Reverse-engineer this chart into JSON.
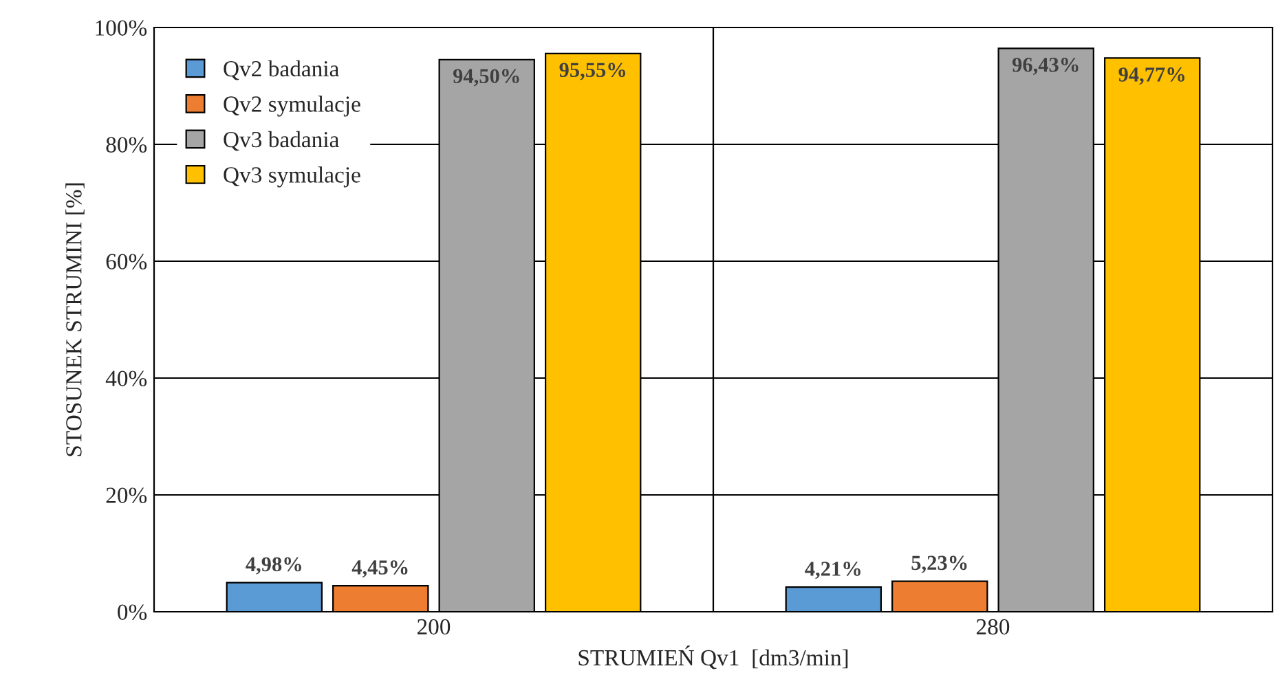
{
  "chart_data": {
    "type": "bar",
    "xlabel": "STRUMIEŃ Qv1  [dm3/min]",
    "ylabel": "STOSUNEK STRUMINI [%]",
    "categories": [
      "200",
      "280"
    ],
    "series": [
      {
        "name": "Qv2 badania",
        "color": "#5b9bd5",
        "values": [
          4.98,
          4.21
        ],
        "value_labels": [
          "4,98%",
          "4,21%"
        ]
      },
      {
        "name": "Qv2 symulacje",
        "color": "#ed7d31",
        "values": [
          4.45,
          5.23
        ],
        "value_labels": [
          "4,45%",
          "5,23%"
        ]
      },
      {
        "name": "Qv3 badania",
        "color": "#a5a5a5",
        "values": [
          94.5,
          96.43
        ],
        "value_labels": [
          "94,50%",
          "96,43%"
        ]
      },
      {
        "name": "Qv3 symulacje",
        "color": "#ffc000",
        "values": [
          95.55,
          94.77
        ],
        "value_labels": [
          "95,55%",
          "94,77%"
        ]
      }
    ],
    "ylim": [
      0,
      100
    ],
    "yticks": [
      {
        "value": 0,
        "label": "0%"
      },
      {
        "value": 20,
        "label": "20%"
      },
      {
        "value": 40,
        "label": "40%"
      },
      {
        "value": 60,
        "label": "60%"
      },
      {
        "value": 80,
        "label": "80%"
      },
      {
        "value": 100,
        "label": "100%"
      }
    ],
    "grid": true,
    "legend": "top left"
  }
}
